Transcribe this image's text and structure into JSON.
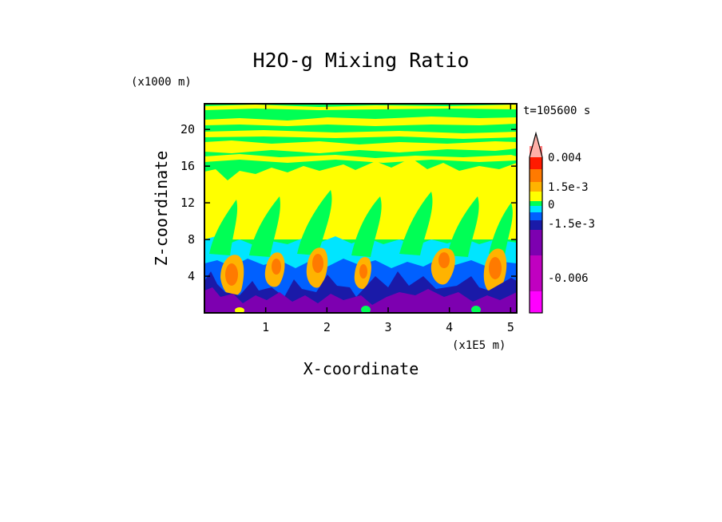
{
  "chart_data": {
    "type": "heatmap",
    "title": "H2O-g Mixing Ratio",
    "xlabel": "X-coordinate",
    "ylabel": "Z-coordinate",
    "x_unit": "(x1E5 m)",
    "y_unit": "(x1000 m)",
    "time_label": "t=105600 s",
    "xlim": [
      0,
      5.1
    ],
    "ylim": [
      0,
      22.8
    ],
    "x_ticks": [
      1,
      2,
      3,
      4,
      5
    ],
    "y_ticks": [
      4,
      8,
      12,
      16,
      20
    ],
    "grid": false,
    "colorbar": {
      "levels": [
        {
          "color": "#ff00ff"
        },
        {
          "color": "#c000c0"
        },
        {
          "color": "#7d00b0"
        },
        {
          "color": "#1a1aa8"
        },
        {
          "color": "#0060ff"
        },
        {
          "color": "#00e5ff"
        },
        {
          "color": "#00ff55"
        },
        {
          "color": "#ffff00"
        },
        {
          "color": "#ffb300"
        },
        {
          "color": "#ff7a00"
        },
        {
          "color": "#ff1a00"
        },
        {
          "color": "#ff7e7e"
        },
        {
          "color": "#ffb0a8"
        }
      ],
      "tick_labels": [
        "0.004",
        "1.5e-3",
        "0",
        "-1.5e-3",
        "-0.006"
      ],
      "extend": "max"
    },
    "field_colors": {
      "green": "#00ff55",
      "yellow": "#ffff00",
      "cyan": "#00e5ff",
      "blue": "#0060ff",
      "navy": "#1a1aa8",
      "purple": "#7d00b0",
      "orange": "#ffb300",
      "dark_orange": "#ff7a00"
    }
  }
}
